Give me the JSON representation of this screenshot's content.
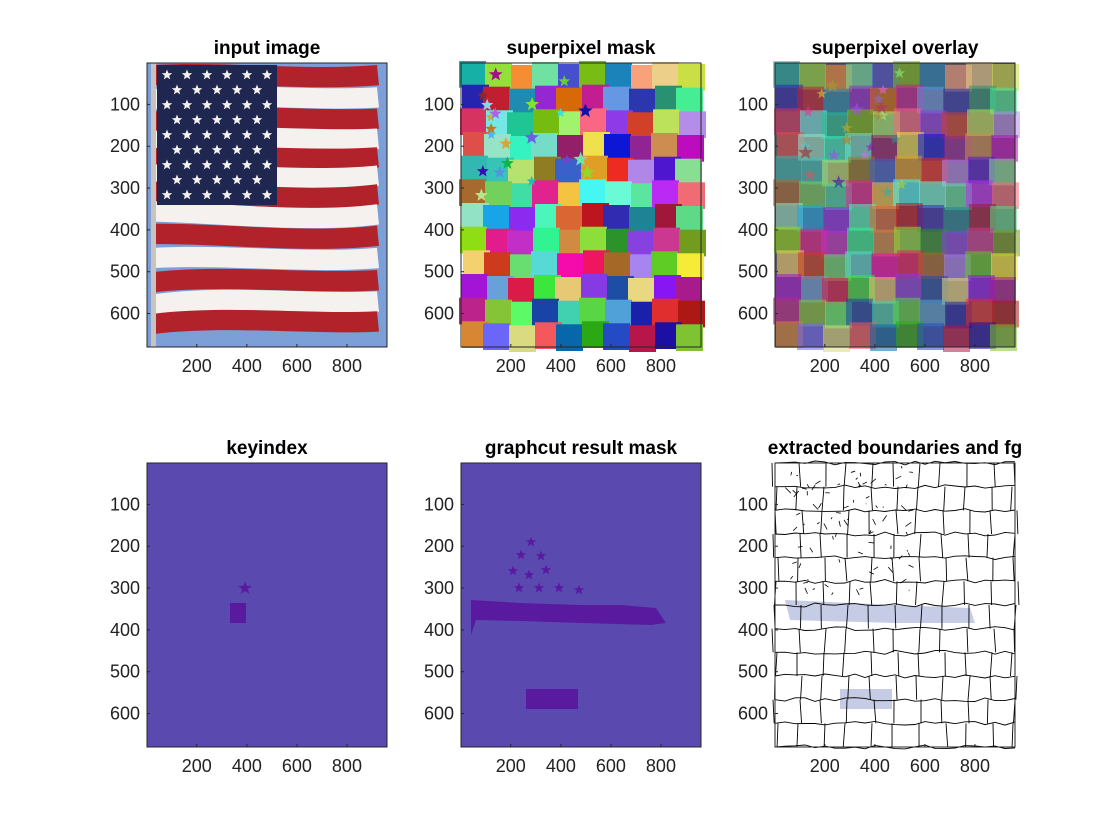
{
  "figure": {
    "panels": [
      {
        "id": "input",
        "title": "input image"
      },
      {
        "id": "spmask",
        "title": "superpixel mask"
      },
      {
        "id": "spoverlay",
        "title": "superpixel overlay"
      },
      {
        "id": "keyindex",
        "title": "keyindex"
      },
      {
        "id": "gcmask",
        "title": "graphcut result mask"
      },
      {
        "id": "boundaries",
        "title": "extracted boundaries and fg"
      }
    ],
    "axes": {
      "x_ticks": [
        "200",
        "400",
        "600",
        "800"
      ],
      "y_ticks": [
        "100",
        "200",
        "300",
        "400",
        "500",
        "600"
      ],
      "x_tick_values": [
        200,
        400,
        600,
        800
      ],
      "y_tick_values": [
        100,
        200,
        300,
        400,
        500,
        600
      ],
      "x_range": [
        1,
        960
      ],
      "y_range": [
        1,
        680
      ]
    }
  },
  "colors": {
    "mask_bg": "#5a4ab0",
    "mask_fg": "#5a1aa0",
    "flag_red": "#b2222a",
    "flag_white": "#f4f1ee",
    "flag_blue": "#1f2750",
    "sky": "#7b9fd6",
    "fg_tint": "#c6cce6"
  }
}
